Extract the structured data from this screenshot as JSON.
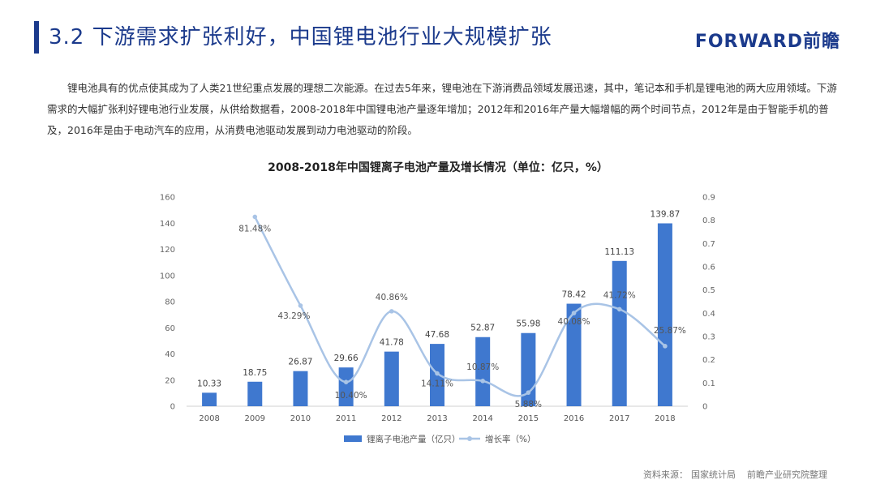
{
  "header": {
    "title": "3.2 下游需求扩张利好，中国锂电池行业大规模扩张",
    "logo": "FORWARD前瞻"
  },
  "intro_text": "锂电池具有的优点使其成为了人类21世纪重点发展的理想二次能源。在过去5年来，锂电池在下游消费品领域发展迅速，其中，笔记本和手机是锂电池的两大应用领域。下游需求的大幅扩张利好锂电池行业发展，从供给数据看，2008-2018年中国锂电池产量逐年增加；2012年和2016年产量大幅增幅的两个时间节点，2012年是由于智能手机的普及，2016年是由于电动汽车的应用，从消费电池驱动发展到动力电池驱动的阶段。",
  "chart_data": {
    "type": "bar+line",
    "title": "2008-2018年中国锂离子电池产量及增长情况（单位：亿只，%）",
    "categories": [
      "2008",
      "2009",
      "2010",
      "2011",
      "2012",
      "2013",
      "2014",
      "2015",
      "2016",
      "2017",
      "2018"
    ],
    "series": [
      {
        "name": "锂离子电池产量（亿只）",
        "type": "bar",
        "axis": "left",
        "color": "#3f78cf",
        "values": [
          10.33,
          18.75,
          26.87,
          29.66,
          41.78,
          47.68,
          52.87,
          55.98,
          78.42,
          111.13,
          139.87
        ],
        "labels": [
          "10.33",
          "18.75",
          "26.87",
          "29.66",
          "41.78",
          "47.68",
          "52.87",
          "55.98",
          "78.42",
          "111.13",
          "139.87"
        ]
      },
      {
        "name": "增长率（%）",
        "type": "line",
        "axis": "right",
        "color": "#a9c4e6",
        "x": [
          "2009",
          "2010",
          "2011",
          "2012",
          "2013",
          "2014",
          "2015",
          "2016",
          "2017",
          "2018"
        ],
        "values": [
          0.8148,
          0.4329,
          0.104,
          0.4086,
          0.1411,
          0.1087,
          0.0588,
          0.4008,
          0.4172,
          0.2587
        ],
        "labels": [
          "81.48%",
          "43.29%",
          "10.40%",
          "40.86%",
          "14.11%",
          "10.87%",
          "5.88%",
          "40.08%",
          "41.72%",
          "25.87%"
        ]
      }
    ],
    "y_left": {
      "min": 0,
      "max": 160,
      "ticks": [
        "0",
        "20",
        "40",
        "60",
        "80",
        "100",
        "120",
        "140",
        "160"
      ]
    },
    "y_right": {
      "min": 0,
      "max": 0.9,
      "ticks": [
        "0",
        "0.1",
        "0.2",
        "0.3",
        "0.4",
        "0.5",
        "0.6",
        "0.7",
        "0.8",
        "0.9"
      ]
    },
    "legend_position": "bottom",
    "grid": false
  },
  "footer": {
    "source_label": "资料来源：",
    "source_1": "国家统计局",
    "source_2": "前瞻产业研究院整理"
  }
}
